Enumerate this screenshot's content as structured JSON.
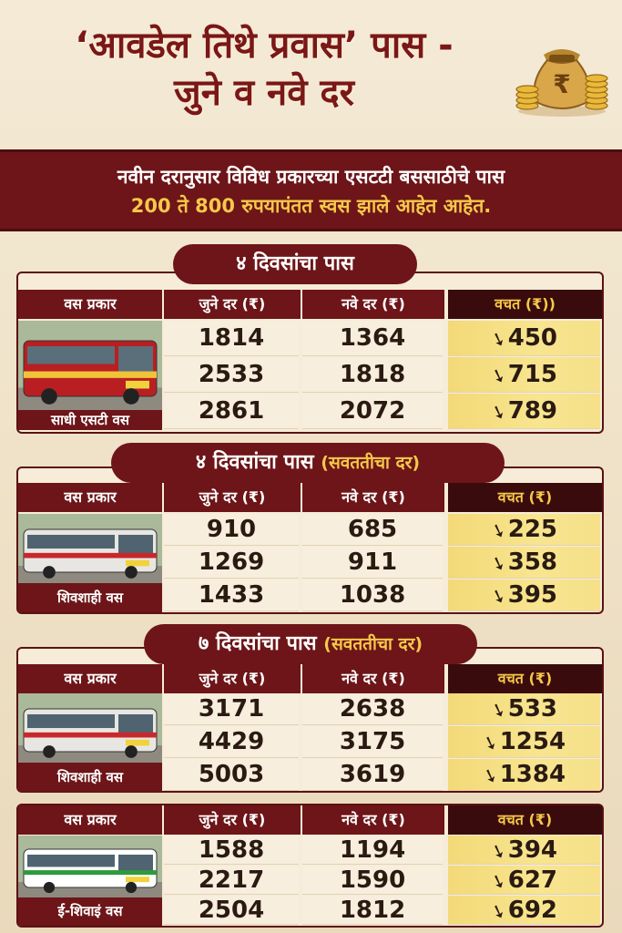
{
  "title": {
    "line1": "‘आवडेल तिथे प्रवास’ पास -",
    "line2": "जुने व नवे दर"
  },
  "icons": {
    "money": "money-bag-coins-icon",
    "arrow": "down-arrow-icon"
  },
  "banner": {
    "line1": "नवीन दरानुसार विविध प्रकारच्या एसटटी बससाठीचे पास",
    "line2": "200 ते 800 रुपयापंतत स्वस झाले आहेत आहेत."
  },
  "sections": [
    {
      "label": "४ दिवसांचा पास",
      "label_paren": "",
      "headers": {
        "type": "वस प्रकार",
        "old": "जुने दर (₹)",
        "new": "नवे दर (₹)",
        "save": "वचत (₹))"
      },
      "bus_name": "साधी एसटी वस",
      "rows": [
        {
          "old": "1814",
          "new": "1364",
          "save": "450"
        },
        {
          "old": "2533",
          "new": "1818",
          "save": "715"
        },
        {
          "old": "2861",
          "new": "2072",
          "save": "789"
        }
      ]
    },
    {
      "label": "४ दिवसांचा पास",
      "label_paren": "(सवततीचा दर)",
      "headers": {
        "type": "वस प्रकार",
        "old": "जुने दर (₹)",
        "new": "नवे दर (₹)",
        "save": "वचत (₹)"
      },
      "bus_name": "शिवशाही वस",
      "rows": [
        {
          "old": "910",
          "new": "685",
          "save": "225"
        },
        {
          "old": "1269",
          "new": "911",
          "save": "358"
        },
        {
          "old": "1433",
          "new": "1038",
          "save": "395"
        }
      ]
    },
    {
      "label": "७ दिवसांचा पास",
      "label_paren": "(सवततीचा दर)",
      "headers": {
        "type": "वस प्रकार",
        "old": "जुने दर (₹)",
        "new": "नवे दर (₹)",
        "save": "वचत (₹)"
      },
      "bus_name": "शिवशाही वस",
      "rows": [
        {
          "old": "3171",
          "new": "2638",
          "save": "533"
        },
        {
          "old": "4429",
          "new": "3175",
          "save": "1254"
        },
        {
          "old": "5003",
          "new": "3619",
          "save": "1384"
        }
      ]
    },
    {
      "label": "",
      "label_paren": "",
      "headers": {
        "type": "वस प्रकार",
        "old": "जुने दर (₹)",
        "new": "नवे दर (₹)",
        "save": "वचत (₹)"
      },
      "bus_name": "ई-शिवाइं वस",
      "rows": [
        {
          "old": "1588",
          "new": "1194",
          "save": "394"
        },
        {
          "old": "2217",
          "new": "1590",
          "save": "627"
        },
        {
          "old": "2504",
          "new": "1812",
          "save": "692"
        }
      ]
    }
  ],
  "colors": {
    "maroon": "#6d1518",
    "gold": "#f5c84a",
    "highlight": "#f8e58f",
    "background": "#efe3cc"
  }
}
